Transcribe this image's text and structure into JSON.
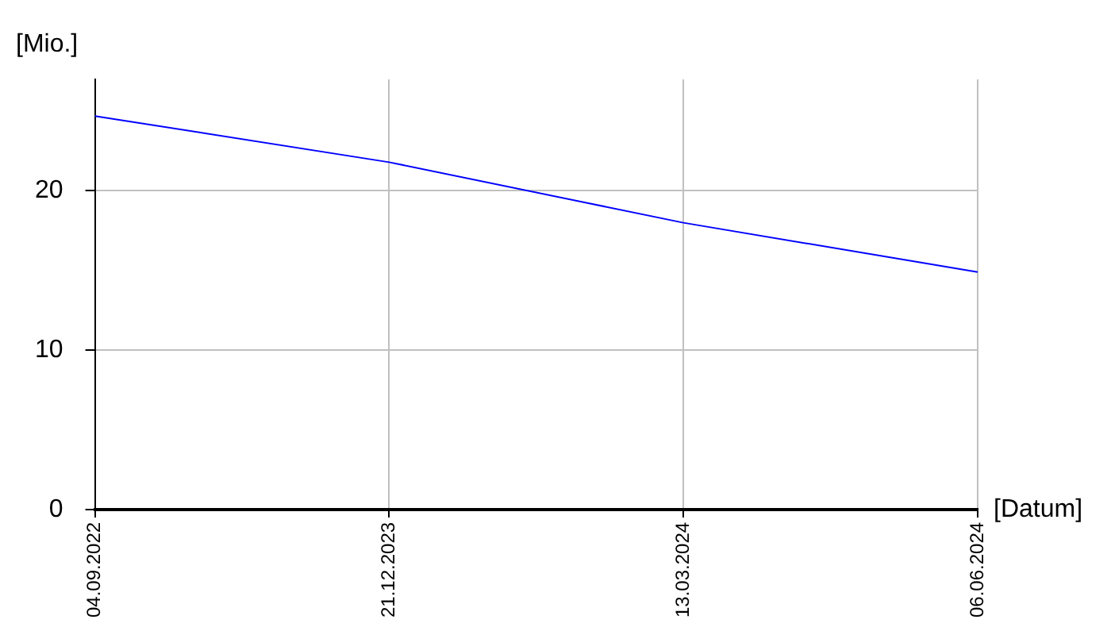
{
  "chart_data": {
    "type": "line",
    "xlabel": "[Datum]",
    "ylabel": "[Mio.]",
    "categories": [
      "04.09.2022",
      "21.12.2023",
      "13.03.2024",
      "06.06.2024"
    ],
    "series": [
      {
        "color": "#0000ff",
        "values": [
          24.7,
          21.8,
          18.0,
          14.9
        ]
      }
    ],
    "ylim": [
      0,
      27
    ],
    "yticks": [
      0,
      10,
      20
    ],
    "grid": true,
    "legend": false,
    "marker": "none",
    "line_style": "solid"
  }
}
